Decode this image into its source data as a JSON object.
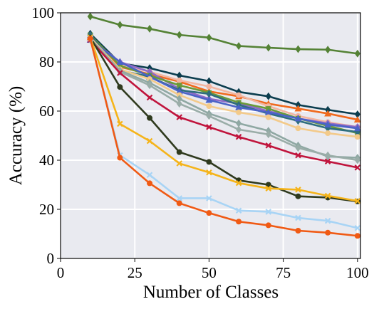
{
  "chart_data": {
    "type": "line",
    "title": "",
    "xlabel": "Number of Classes",
    "ylabel": "Accuracy (%)",
    "xlim": [
      0,
      101
    ],
    "ylim": [
      0,
      100
    ],
    "xticks": [
      0,
      25,
      50,
      75,
      100
    ],
    "yticks": [
      0,
      20,
      40,
      60,
      80,
      100
    ],
    "grid": true,
    "background": "#E9EAF0",
    "x": [
      10,
      20,
      30,
      40,
      50,
      60,
      70,
      80,
      90,
      100
    ],
    "series": [
      {
        "color": "#548235",
        "marker": "diamond",
        "values": [
          98.5,
          95.1,
          93.5,
          91.0,
          89.9,
          86.5,
          85.8,
          85.2,
          85.0,
          83.4
        ]
      },
      {
        "color": "#0B3D4E",
        "marker": "diamond",
        "values": [
          91.5,
          79.5,
          77.5,
          74.5,
          72.2,
          67.8,
          66.0,
          62.5,
          60.5,
          58.7
        ]
      },
      {
        "color": "#F06A1D",
        "marker": "triangle",
        "values": [
          90.0,
          78.0,
          75.0,
          72.0,
          68.0,
          66.0,
          63.0,
          61.0,
          59.0,
          56.5
        ]
      },
      {
        "color": "#F2B5A0",
        "marker": "circle",
        "values": [
          90.5,
          79.0,
          76.0,
          72.5,
          70.0,
          66.5,
          62.0,
          58.0,
          55.5,
          53.5
        ]
      },
      {
        "color": "#8E6AC8",
        "marker": "diamond",
        "values": [
          89.5,
          80.0,
          76.0,
          69.0,
          65.0,
          63.0,
          60.0,
          57.0,
          55.0,
          53.5
        ]
      },
      {
        "color": "#6A9A3A",
        "marker": "square",
        "values": [
          91.0,
          78.5,
          74.5,
          70.5,
          67.5,
          63.5,
          61.0,
          57.0,
          54.0,
          51.0
        ]
      },
      {
        "color": "#2E6E7E",
        "marker": "diamond",
        "values": [
          91.0,
          76.5,
          74.0,
          68.5,
          67.0,
          62.5,
          59.0,
          56.0,
          53.0,
          51.5
        ]
      },
      {
        "color": "#4A63C7",
        "marker": "triangle",
        "values": [
          89.0,
          80.0,
          74.0,
          68.0,
          64.5,
          61.5,
          59.5,
          57.0,
          54.5,
          53.0
        ]
      },
      {
        "color": "#F3CA8A",
        "marker": "circle",
        "values": [
          90.0,
          77.0,
          73.0,
          66.5,
          62.0,
          59.5,
          57.5,
          53.0,
          51.0,
          49.5
        ]
      },
      {
        "color": "#8FA8A3",
        "marker": "diamond",
        "values": [
          89.5,
          76.5,
          71.5,
          65.0,
          59.0,
          55.0,
          52.0,
          46.0,
          41.5,
          41.0
        ]
      },
      {
        "color": "#9AADA8",
        "marker": "diamond",
        "values": [
          89.0,
          76.0,
          70.5,
          63.0,
          58.0,
          52.5,
          50.5,
          45.0,
          42.0,
          40.0
        ]
      },
      {
        "color": "#C0143C",
        "marker": "x",
        "values": [
          89.0,
          75.5,
          65.5,
          57.5,
          53.5,
          49.5,
          46.0,
          42.0,
          39.5,
          37.0
        ]
      },
      {
        "color": "#2F3A1E",
        "marker": "circle",
        "values": [
          90.0,
          69.8,
          57.2,
          43.3,
          39.3,
          31.8,
          30.0,
          25.3,
          24.8,
          23.2
        ]
      },
      {
        "color": "#F5B41A",
        "marker": "x",
        "values": [
          90.0,
          54.8,
          47.8,
          38.7,
          35.0,
          30.7,
          28.5,
          28.0,
          25.5,
          23.4
        ]
      },
      {
        "color": "#A8D4F5",
        "marker": "x",
        "values": [
          89.5,
          42.0,
          34.0,
          24.5,
          24.5,
          19.5,
          19.0,
          16.5,
          15.3,
          12.4
        ]
      },
      {
        "color": "#F05A14",
        "marker": "circle",
        "values": [
          89.5,
          41.0,
          30.6,
          22.5,
          18.5,
          15.0,
          13.5,
          11.3,
          10.5,
          9.2
        ]
      }
    ]
  }
}
